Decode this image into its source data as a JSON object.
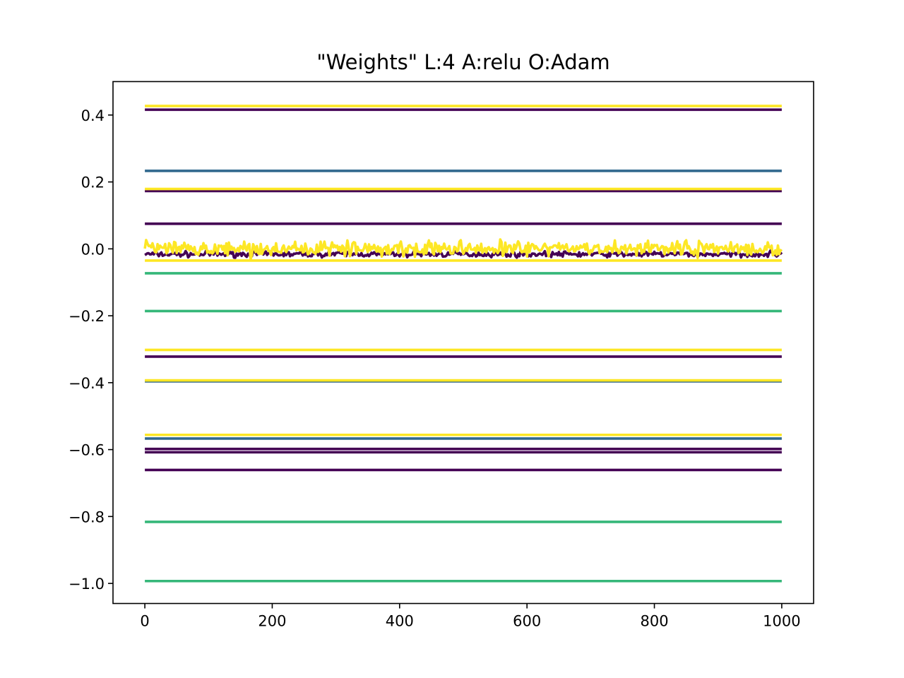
{
  "chart_data": {
    "type": "line",
    "title": "\"Weights\" L:4 A:relu O:Adam",
    "xlabel": "",
    "ylabel": "",
    "xlim": [
      -50,
      1050
    ],
    "ylim": [
      -1.06,
      0.5
    ],
    "x_ticks": [
      0,
      200,
      400,
      600,
      800,
      1000
    ],
    "x_tick_labels": [
      "0",
      "200",
      "400",
      "600",
      "800",
      "1000"
    ],
    "y_ticks": [
      0.4,
      0.2,
      0.0,
      -0.2,
      -0.4,
      -0.6,
      -0.8,
      -1.0
    ],
    "y_tick_labels": [
      "0.4",
      "0.2",
      "0.0",
      "−0.2",
      "−0.4",
      "−0.6",
      "−0.8",
      "−1.0"
    ],
    "grid": false,
    "legend": "none",
    "x_range": [
      0,
      1000
    ],
    "series": [
      {
        "color": "#440154",
        "values": [
          0.416,
          0.173,
          0.075,
          -0.322,
          -0.598,
          -0.608,
          -0.661
        ]
      },
      {
        "color": "#31688e",
        "values": [
          0.233,
          -0.396,
          -0.567
        ]
      },
      {
        "color": "#35b779",
        "values": [
          -0.073,
          -0.186,
          -0.816,
          -0.993
        ]
      },
      {
        "color": "#fde725",
        "values": [
          0.427,
          0.179,
          -0.035,
          -0.302,
          -0.393,
          -0.556
        ]
      }
    ],
    "noisy_series": [
      {
        "color": "#440154",
        "center": -0.016,
        "amplitude": 0.012,
        "seed": 7
      },
      {
        "color": "#fde725",
        "center": 0.0,
        "amplitude": 0.032,
        "seed": 13
      }
    ]
  }
}
